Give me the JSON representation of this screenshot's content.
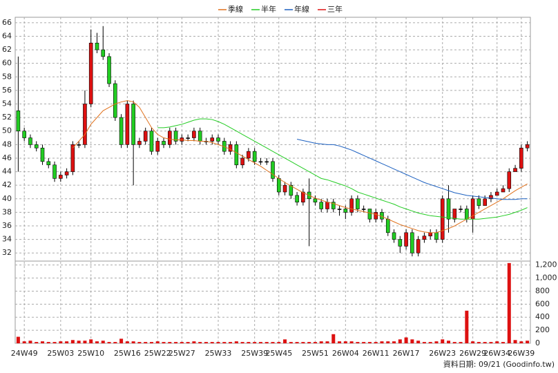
{
  "chart_data": [
    {
      "type": "candlestick",
      "legend": [
        {
          "name": "季線",
          "color": "#e0701a"
        },
        {
          "name": "半年",
          "color": "#22cc22"
        },
        {
          "name": "年線",
          "color": "#1a5fc0"
        },
        {
          "name": "三年",
          "color": "#dd1111"
        }
      ],
      "up_color": "#dd1111",
      "down_color": "#22cc22",
      "flat_color": "#000000",
      "categories": [
        null,
        "24W49",
        null,
        null,
        null,
        null,
        null,
        "25W03",
        null,
        null,
        null,
        null,
        "25W10",
        null,
        null,
        null,
        null,
        null,
        "25W16",
        null,
        null,
        null,
        null,
        "25W22",
        null,
        null,
        null,
        "25W27",
        null,
        null,
        null,
        null,
        null,
        "25W33",
        null,
        null,
        null,
        null,
        null,
        "25W39",
        null,
        null,
        null,
        "25W45",
        null,
        null,
        null,
        null,
        null,
        "25W51",
        null,
        null,
        null,
        null,
        "26W04",
        null,
        null,
        null,
        null,
        "26W11",
        null,
        null,
        null,
        null,
        "26W17",
        null,
        null,
        null,
        null,
        null,
        "26W23",
        null,
        null,
        null,
        null,
        "26W29",
        null,
        null,
        null,
        "26W34",
        null,
        null,
        null,
        "26W39",
        null
      ],
      "open": [
        53,
        50,
        49,
        48,
        47.5,
        45.5,
        45,
        43,
        43.5,
        44,
        48,
        48,
        54,
        63,
        62,
        61,
        57,
        52,
        48,
        54,
        48,
        48.5,
        50,
        47,
        48.5,
        48,
        50,
        48.5,
        49,
        49,
        50,
        48.5,
        48.5,
        49,
        48.5,
        47,
        48,
        45,
        46,
        47,
        45.5,
        45.5,
        45.5,
        43,
        41,
        42,
        40.5,
        39.5,
        41,
        40,
        39.5,
        38.5,
        39.5,
        38.5,
        38.5,
        38,
        40,
        38.5,
        38.5,
        37,
        38,
        37,
        35,
        34,
        33,
        35,
        32,
        34,
        34.5,
        35,
        34,
        40,
        37,
        38.5,
        38.5,
        37,
        40,
        39,
        40,
        40.5,
        41,
        41.5,
        44,
        44.5,
        47.5
      ],
      "high": [
        61,
        50.5,
        49.5,
        48.5,
        48,
        46,
        45.5,
        44,
        44.5,
        48.5,
        48.5,
        56,
        65,
        64.5,
        65.5,
        61.5,
        57.5,
        52.5,
        54.5,
        54.5,
        49,
        50.5,
        50.5,
        49,
        49,
        50.5,
        50.5,
        49.5,
        49.5,
        50.5,
        50.5,
        49,
        49.5,
        49.5,
        49,
        48.5,
        48.5,
        46.5,
        47.5,
        47.5,
        46,
        46,
        46,
        43.5,
        42.5,
        42.5,
        41,
        41.5,
        43,
        40.5,
        40,
        40,
        40,
        39,
        39,
        40.5,
        40.5,
        39,
        38.5,
        38.5,
        38.5,
        37.5,
        35.5,
        34.5,
        35.5,
        35.5,
        34.5,
        35,
        35.5,
        35.5,
        40.5,
        42,
        38.5,
        39,
        39,
        40.5,
        40.5,
        40.5,
        41,
        41.5,
        42,
        44.5,
        45,
        48,
        48.5
      ],
      "low": [
        44,
        48.5,
        47.5,
        47,
        45,
        44.5,
        42.5,
        42.5,
        43,
        43.5,
        47.5,
        47.5,
        53.5,
        61.5,
        60.5,
        56.5,
        51.5,
        47.5,
        47.5,
        42,
        47.5,
        48,
        46.5,
        46.5,
        47.5,
        47.5,
        48,
        48,
        48.5,
        48.5,
        48,
        48,
        48,
        48,
        46.5,
        46.5,
        44.5,
        44.5,
        45.5,
        45,
        45,
        45,
        42.5,
        40.5,
        40.5,
        40,
        39,
        39,
        33,
        39,
        38,
        38,
        38,
        37.5,
        37,
        37.5,
        38,
        38,
        36.5,
        36.5,
        36.5,
        34.5,
        33.5,
        32,
        32.5,
        31.5,
        31.5,
        33.5,
        34,
        33.5,
        33.5,
        35,
        36.5,
        38,
        36.5,
        35,
        38.5,
        39,
        39.5,
        40.5,
        41,
        41,
        44,
        44,
        47
      ],
      "close": [
        50,
        49,
        48,
        47.5,
        45.5,
        45,
        43,
        43.5,
        44,
        48,
        48,
        54,
        63,
        62,
        61,
        57,
        52,
        48,
        54,
        48,
        48.5,
        50,
        47,
        48.5,
        48,
        50,
        48.5,
        49,
        49,
        50,
        48.5,
        48.5,
        49,
        48.5,
        47,
        48,
        45,
        46,
        47,
        45.5,
        45.5,
        45.5,
        43,
        41,
        42,
        40.5,
        39.5,
        41,
        40,
        39.5,
        38.5,
        39.5,
        38.5,
        38.5,
        38,
        40,
        38.5,
        38.5,
        37,
        38,
        37,
        35,
        34,
        33,
        35,
        32,
        34,
        34.5,
        35,
        34,
        40,
        37,
        38.5,
        38.5,
        37,
        40,
        39,
        40,
        40.5,
        41,
        41.5,
        44,
        44.5,
        47.5,
        48
      ],
      "series": [
        {
          "name": "季線",
          "color": "#e0701a",
          "values": [
            null,
            null,
            null,
            null,
            null,
            null,
            null,
            null,
            null,
            47.5,
            48.5,
            49.5,
            51,
            52,
            53,
            53.5,
            54,
            54.3,
            54.5,
            54.3,
            53.5,
            52,
            50.5,
            49.5,
            49,
            48.8,
            48.7,
            48.7,
            48.6,
            48.6,
            48.5,
            48.5,
            48.3,
            48,
            47.7,
            47.3,
            46.8,
            46.3,
            45.8,
            45.3,
            44.8,
            44.2,
            43.6,
            43,
            42.4,
            41.9,
            41.4,
            40.9,
            40.5,
            40.1,
            39.8,
            39.5,
            39.3,
            39,
            38.7,
            38.5,
            38.3,
            38.1,
            37.9,
            37.7,
            37.4,
            37,
            36.6,
            36.2,
            35.9,
            35.6,
            35.3,
            35.1,
            35,
            35,
            35.3,
            35.6,
            36,
            36.5,
            37,
            37.5,
            38,
            38.5,
            39,
            39.5,
            40,
            40.6,
            41.2,
            41.7,
            42.2
          ]
        },
        {
          "name": "半年",
          "color": "#22cc22",
          "values": [
            null,
            null,
            null,
            null,
            null,
            null,
            null,
            null,
            null,
            null,
            null,
            null,
            null,
            null,
            null,
            null,
            null,
            null,
            null,
            null,
            null,
            null,
            null,
            50.5,
            50.5,
            50.6,
            50.8,
            51,
            51.3,
            51.6,
            51.8,
            51.8,
            51.7,
            51.4,
            51,
            50.5,
            50,
            49.5,
            49,
            48.5,
            48,
            47.5,
            47,
            46.5,
            46,
            45.5,
            45,
            44.5,
            44,
            43.5,
            43,
            42.8,
            42.5,
            42.2,
            41.9,
            41.5,
            41,
            40.7,
            40.4,
            40.1,
            39.8,
            39.5,
            39.2,
            38.8,
            38.5,
            38.2,
            37.9,
            37.7,
            37.5,
            37.4,
            37.3,
            37.2,
            37.1,
            37,
            37,
            37,
            37,
            37.1,
            37.2,
            37.3,
            37.5,
            37.7,
            38,
            38.3,
            38.7
          ]
        },
        {
          "name": "年線",
          "color": "#1a5fc0",
          "values": [
            null,
            null,
            null,
            null,
            null,
            null,
            null,
            null,
            null,
            null,
            null,
            null,
            null,
            null,
            null,
            null,
            null,
            null,
            null,
            null,
            null,
            null,
            null,
            null,
            null,
            null,
            null,
            null,
            null,
            null,
            null,
            null,
            null,
            null,
            null,
            null,
            null,
            null,
            null,
            null,
            null,
            null,
            null,
            null,
            null,
            null,
            48.8,
            48.6,
            48.4,
            48.2,
            48.1,
            48,
            48,
            47.8,
            47.5,
            47.2,
            46.8,
            46.4,
            46,
            45.6,
            45.2,
            44.8,
            44.4,
            44,
            43.6,
            43.2,
            42.8,
            42.4,
            42.1,
            41.8,
            41.5,
            41.2,
            40.9,
            40.7,
            40.5,
            40.4,
            40.3,
            40.2,
            40.1,
            40,
            39.9,
            39.9,
            39.9,
            40,
            40
          ]
        }
      ],
      "ylim": [
        30.8,
        66.8
      ],
      "yticks": [
        32,
        34,
        36,
        38,
        40,
        42,
        44,
        46,
        48,
        50,
        52,
        54,
        56,
        58,
        60,
        62,
        64,
        66
      ],
      "grid": true
    },
    {
      "type": "bar",
      "color": "#dd1111",
      "values": [
        100,
        30,
        40,
        20,
        30,
        20,
        20,
        30,
        30,
        50,
        40,
        40,
        60,
        30,
        40,
        20,
        20,
        70,
        30,
        30,
        20,
        20,
        20,
        30,
        20,
        20,
        20,
        20,
        20,
        30,
        20,
        20,
        20,
        20,
        20,
        20,
        30,
        20,
        20,
        20,
        20,
        20,
        20,
        20,
        60,
        20,
        20,
        20,
        20,
        20,
        30,
        30,
        140,
        30,
        30,
        30,
        20,
        20,
        20,
        20,
        30,
        30,
        30,
        60,
        90,
        60,
        40,
        20,
        20,
        30,
        60,
        40,
        20,
        20,
        500,
        30,
        20,
        20,
        20,
        30,
        20,
        1230,
        50,
        30,
        40
      ],
      "ylim": [
        0,
        1260
      ],
      "yticks": [
        0,
        200,
        400,
        600,
        800,
        {
          "value": 1000,
          "label": "1,000"
        },
        {
          "value": 1200,
          "label": "1,200"
        }
      ],
      "grid": true,
      "footnote": "資料日期: 09/21  (Goodinfo.tw)"
    }
  ]
}
